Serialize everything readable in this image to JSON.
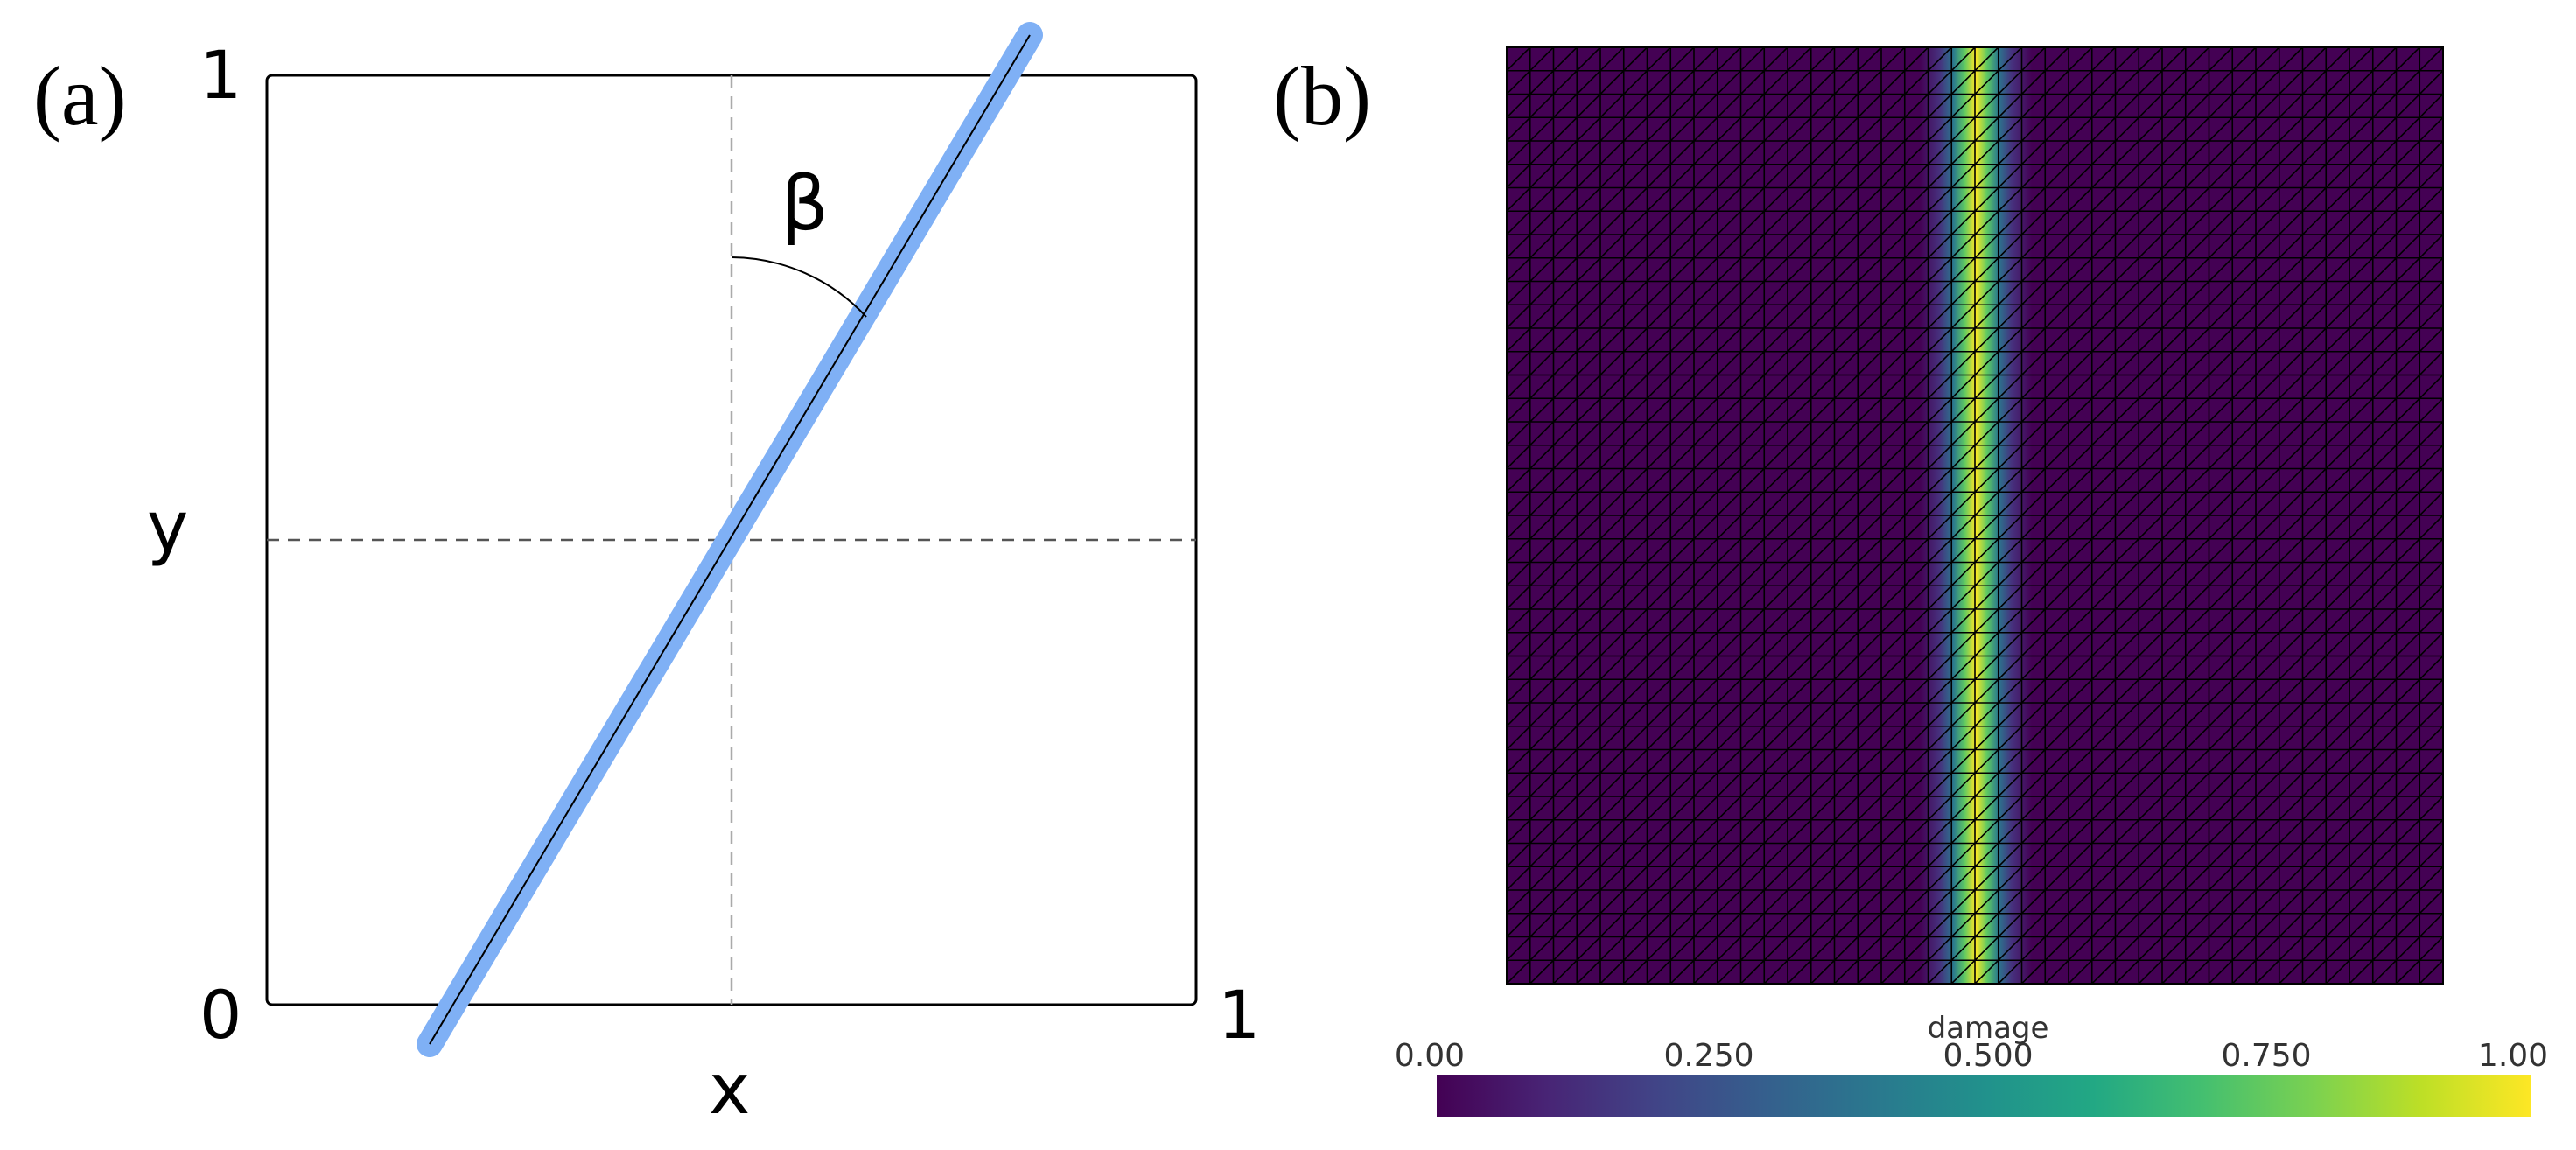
{
  "panel_a": {
    "label": "(a)",
    "x_label": "x",
    "y_label": "y",
    "tick_origin": "0",
    "tick_x_max": "1",
    "tick_y_max": "1",
    "angle_label": "β",
    "crack_color": "#7fb0f5",
    "domain": {
      "xlim": [
        0,
        1
      ],
      "ylim": [
        0,
        1
      ]
    }
  },
  "panel_b": {
    "label": "(b)",
    "colorbar": {
      "title": "damage",
      "ticks": [
        "0.00",
        "0.250",
        "0.500",
        "0.750",
        "1.00"
      ],
      "colormap": "viridis",
      "range": [
        0,
        1
      ]
    },
    "mesh_divisions": 40,
    "damage_band_center_x": 0.5
  }
}
